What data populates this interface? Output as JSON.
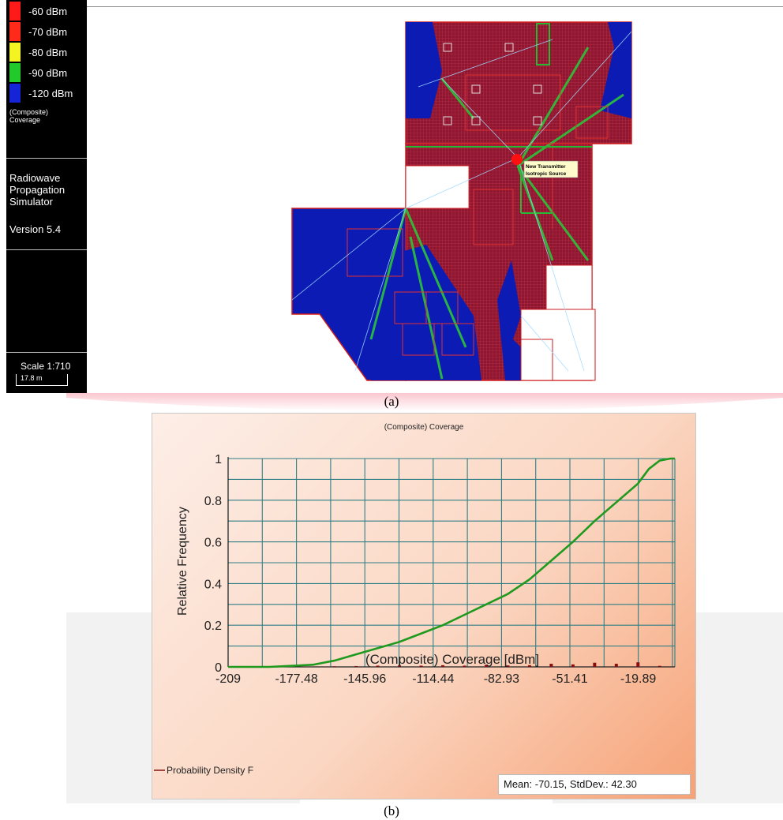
{
  "sidebar": {
    "legend": [
      {
        "label": "-60 dBm",
        "color": "#ff1a1a"
      },
      {
        "label": "-70 dBm",
        "color": "#ff2a1a"
      },
      {
        "label": "-80 dBm",
        "color": "#f4f422"
      },
      {
        "label": "-90 dBm",
        "color": "#21c92a"
      },
      {
        "label": "-120 dBm",
        "color": "#1424d6"
      }
    ],
    "legend_caption": "(Composite) Coverage",
    "app_name": "Radiowave Propagation Simulator",
    "version": "Version 5.4",
    "scale": "Scale 1:710",
    "scale_bar": "17.8 m"
  },
  "map": {
    "transmitter_label_line1": "New Transmitter",
    "transmitter_label_line2": "Isotropic Source"
  },
  "captions": {
    "a": "(a)",
    "b": "(b)"
  },
  "chart": {
    "title": "(Composite) Coverage",
    "legend_label": "Probability Density F",
    "stats": "Mean: -70.15, StdDev.: 42.30"
  },
  "chart_data": {
    "type": "line",
    "title": "(Composite) Coverage",
    "xlabel": "(Composite) Coverage [dBm]",
    "ylabel": "Relative Frequency",
    "x_ticks": [
      -209,
      -177.48,
      -145.96,
      -114.44,
      -82.93,
      -51.41,
      -19.89
    ],
    "y_ticks": [
      0,
      0.2,
      0.4,
      0.6,
      0.8,
      1
    ],
    "xlim": [
      -209,
      -3
    ],
    "ylim": [
      0,
      1
    ],
    "grid": true,
    "legend_position": "bottom-left",
    "series": [
      {
        "name": "",
        "color": "#1f9a1f",
        "x": [
          -209,
          -190,
          -180,
          -170,
          -160,
          -150,
          -140,
          -130,
          -120,
          -110,
          -100,
          -90,
          -80,
          -70,
          -60,
          -50,
          -40,
          -30,
          -20,
          -15,
          -10,
          -5,
          -3
        ],
        "y": [
          0,
          0,
          0.005,
          0.01,
          0.03,
          0.06,
          0.09,
          0.12,
          0.16,
          0.2,
          0.25,
          0.3,
          0.35,
          0.42,
          0.51,
          0.6,
          0.7,
          0.79,
          0.88,
          0.95,
          0.99,
          1,
          1
        ]
      },
      {
        "name": "Probability Density F",
        "color": "#8a1010",
        "x": [
          -160,
          -150,
          -140,
          -130,
          -120,
          -110,
          -100,
          -90,
          -80,
          -70,
          -60,
          -50,
          -40,
          -30,
          -20,
          -10
        ],
        "y": [
          0.003,
          0.004,
          0.006,
          0.007,
          0.006,
          0.008,
          0.006,
          0.01,
          0.007,
          0.008,
          0.015,
          0.012,
          0.02,
          0.015,
          0.022,
          0.005
        ]
      }
    ]
  }
}
